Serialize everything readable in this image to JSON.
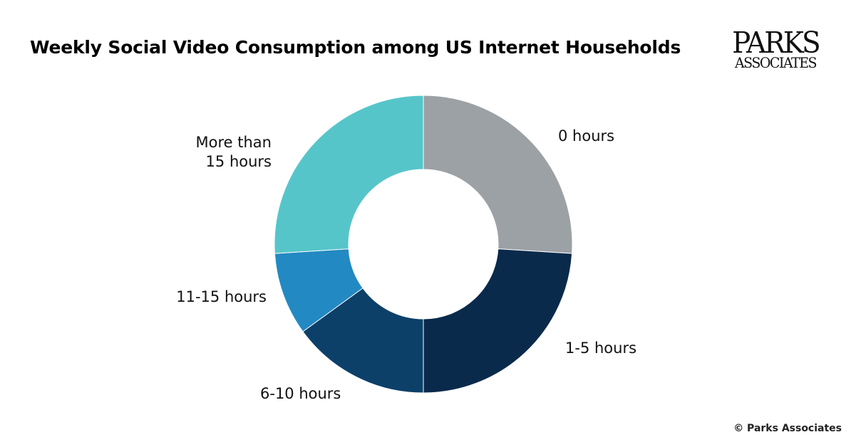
{
  "header": {
    "title": "Weekly Social Video Consumption among US Internet Households",
    "logo_line1": "PARKS",
    "logo_line2": "ASSOCIATES"
  },
  "footer": {
    "copyright": "© Parks Associates"
  },
  "chart_data": {
    "type": "pie",
    "variant": "donut",
    "title": "Weekly Social Video Consumption among US Internet Households",
    "categories": [
      "0 hours",
      "1-5 hours",
      "6-10 hours",
      "11-15 hours",
      "More than 15 hours"
    ],
    "label_lines": [
      [
        "0 hours"
      ],
      [
        "1-5 hours"
      ],
      [
        "6-10 hours"
      ],
      [
        "11-15 hours"
      ],
      [
        "More than",
        "15 hours"
      ]
    ],
    "values": [
      26,
      24,
      15,
      9,
      26
    ],
    "unit": "%",
    "colors": [
      "#9ca1a5",
      "#0a2a4b",
      "#0c4069",
      "#2389c2",
      "#56c5c9"
    ],
    "start_angle": "top",
    "direction": "clockwise",
    "data_labels_shown": false,
    "legend": "none"
  }
}
